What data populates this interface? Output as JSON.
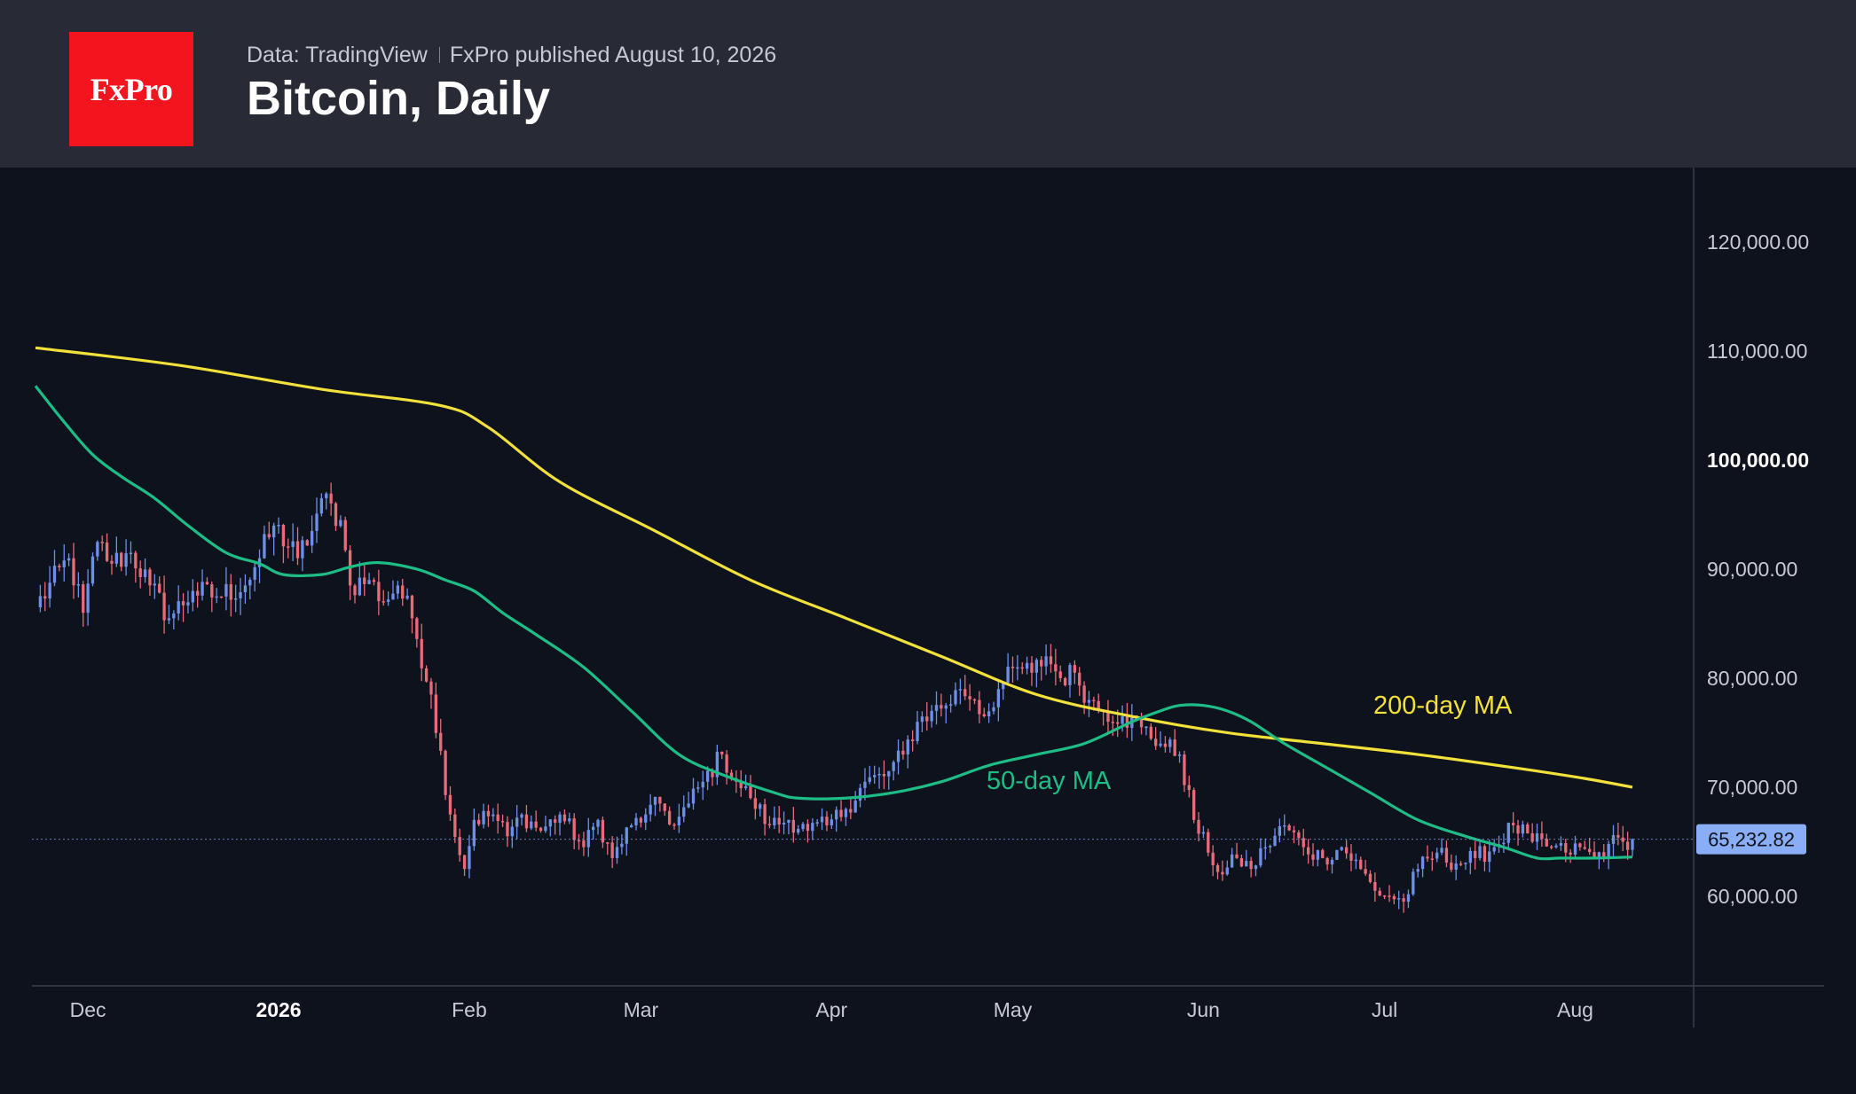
{
  "header": {
    "logo_text": "FxPro",
    "source": "Data: TradingView",
    "published": "FxPro published August 10, 2026",
    "title": "Bitcoin, Daily"
  },
  "colors": {
    "header_bg": "#282a35",
    "chart_bg": "#0e121d",
    "logo_bg": "#f3141d",
    "candle_up": "#6d8fe6",
    "candle_down": "#e76b78",
    "ma200": "#f2e13a",
    "ma50": "#1fbd86",
    "price_tag": "#8aaef5"
  },
  "chart_data": {
    "type": "candlestick",
    "instrument": "Bitcoin",
    "timeframe": "Daily",
    "x_ticks": [
      "Dec",
      "2026",
      "Feb",
      "Mar",
      "Apr",
      "May",
      "Jun",
      "Jul",
      "Aug"
    ],
    "x_tick_bold": "2026",
    "y_ticks": [
      "120,000.00",
      "110,000.00",
      "100,000.00",
      "90,000.00",
      "80,000.00",
      "70,000.00",
      "60,000.00"
    ],
    "y_tick_bold": "100,000.00",
    "last_price": 65232.82,
    "last_price_label": "65,232.82",
    "price_anchors": [
      [
        0,
        86500
      ],
      [
        7,
        91000
      ],
      [
        10,
        86000
      ],
      [
        13,
        92500
      ],
      [
        16,
        90500
      ],
      [
        20,
        91500
      ],
      [
        24,
        88500
      ],
      [
        28,
        85500
      ],
      [
        33,
        88000
      ],
      [
        38,
        87500
      ],
      [
        44,
        88500
      ],
      [
        47,
        91000
      ],
      [
        50,
        94000
      ],
      [
        55,
        91000
      ],
      [
        58,
        93500
      ],
      [
        60,
        96500
      ],
      [
        64,
        94500
      ],
      [
        66,
        88500
      ],
      [
        70,
        89000
      ],
      [
        73,
        87000
      ],
      [
        76,
        88500
      ],
      [
        79,
        85500
      ],
      [
        83,
        78500
      ],
      [
        87,
        67500
      ],
      [
        90,
        62500
      ],
      [
        92,
        67000
      ],
      [
        96,
        67500
      ],
      [
        99,
        65500
      ],
      [
        102,
        67500
      ],
      [
        106,
        66000
      ],
      [
        110,
        67500
      ],
      [
        115,
        64500
      ],
      [
        118,
        67000
      ],
      [
        121,
        63500
      ],
      [
        125,
        66500
      ],
      [
        128,
        67500
      ],
      [
        131,
        68500
      ],
      [
        134,
        66500
      ],
      [
        137,
        68500
      ],
      [
        140,
        70500
      ],
      [
        144,
        73000
      ],
      [
        147,
        70500
      ],
      [
        150,
        69000
      ],
      [
        154,
        66500
      ],
      [
        158,
        67000
      ],
      [
        162,
        66000
      ],
      [
        166,
        66500
      ],
      [
        170,
        68000
      ],
      [
        174,
        70500
      ],
      [
        178,
        71000
      ],
      [
        182,
        73000
      ],
      [
        185,
        76000
      ],
      [
        188,
        77000
      ],
      [
        191,
        77500
      ],
      [
        194,
        79000
      ],
      [
        197,
        78000
      ],
      [
        199,
        76500
      ],
      [
        202,
        79000
      ],
      [
        206,
        81000
      ],
      [
        209,
        80500
      ],
      [
        212,
        82000
      ],
      [
        215,
        80000
      ],
      [
        218,
        80500
      ],
      [
        221,
        78000
      ],
      [
        224,
        77000
      ],
      [
        228,
        76500
      ],
      [
        232,
        75500
      ],
      [
        236,
        74000
      ],
      [
        240,
        73000
      ],
      [
        243,
        67000
      ],
      [
        246,
        64000
      ],
      [
        249,
        62000
      ],
      [
        252,
        63500
      ],
      [
        255,
        62500
      ],
      [
        258,
        64500
      ],
      [
        262,
        66500
      ],
      [
        266,
        64500
      ],
      [
        270,
        63500
      ],
      [
        274,
        64500
      ],
      [
        278,
        62500
      ],
      [
        281,
        60500
      ],
      [
        284,
        60000
      ],
      [
        287,
        59500
      ],
      [
        290,
        62500
      ],
      [
        294,
        64000
      ],
      [
        298,
        63000
      ],
      [
        302,
        63500
      ],
      [
        306,
        64500
      ],
      [
        310,
        66500
      ],
      [
        314,
        65000
      ],
      [
        318,
        64500
      ],
      [
        321,
        64000
      ],
      [
        324,
        64500
      ],
      [
        327,
        63500
      ],
      [
        330,
        64800
      ],
      [
        333,
        65000
      ],
      [
        335,
        65232.82
      ]
    ],
    "series": [
      {
        "name": "200-day MA",
        "points": [
          [
            0,
            110300
          ],
          [
            30,
            108700
          ],
          [
            60,
            106500
          ],
          [
            85,
            105000
          ],
          [
            95,
            103000
          ],
          [
            110,
            98000
          ],
          [
            130,
            93500
          ],
          [
            150,
            89000
          ],
          [
            170,
            85500
          ],
          [
            190,
            82000
          ],
          [
            210,
            78500
          ],
          [
            230,
            76500
          ],
          [
            250,
            75000
          ],
          [
            270,
            74000
          ],
          [
            290,
            73000
          ],
          [
            310,
            71800
          ],
          [
            325,
            70800
          ],
          [
            335,
            70000
          ]
        ]
      },
      {
        "name": "50-day MA",
        "points": [
          [
            0,
            106800
          ],
          [
            6,
            103500
          ],
          [
            12,
            100500
          ],
          [
            18,
            98500
          ],
          [
            25,
            96500
          ],
          [
            32,
            94000
          ],
          [
            40,
            91500
          ],
          [
            47,
            90500
          ],
          [
            52,
            89500
          ],
          [
            60,
            89500
          ],
          [
            66,
            90200
          ],
          [
            72,
            90600
          ],
          [
            80,
            90000
          ],
          [
            86,
            89000
          ],
          [
            92,
            88000
          ],
          [
            98,
            86000
          ],
          [
            105,
            84000
          ],
          [
            115,
            81000
          ],
          [
            125,
            77000
          ],
          [
            135,
            73000
          ],
          [
            145,
            71000
          ],
          [
            155,
            69500
          ],
          [
            160,
            69000
          ],
          [
            170,
            69000
          ],
          [
            180,
            69500
          ],
          [
            190,
            70500
          ],
          [
            200,
            72000
          ],
          [
            210,
            73000
          ],
          [
            220,
            74000
          ],
          [
            230,
            76000
          ],
          [
            236,
            77000
          ],
          [
            240,
            77500
          ],
          [
            245,
            77500
          ],
          [
            250,
            77000
          ],
          [
            255,
            76000
          ],
          [
            262,
            74000
          ],
          [
            270,
            72000
          ],
          [
            280,
            69500
          ],
          [
            290,
            67000
          ],
          [
            300,
            65500
          ],
          [
            308,
            64500
          ],
          [
            315,
            63500
          ],
          [
            320,
            63500
          ],
          [
            327,
            63500
          ],
          [
            335,
            63600
          ]
        ]
      }
    ],
    "annotations": [
      "200-day MA",
      "50-day MA"
    ]
  }
}
